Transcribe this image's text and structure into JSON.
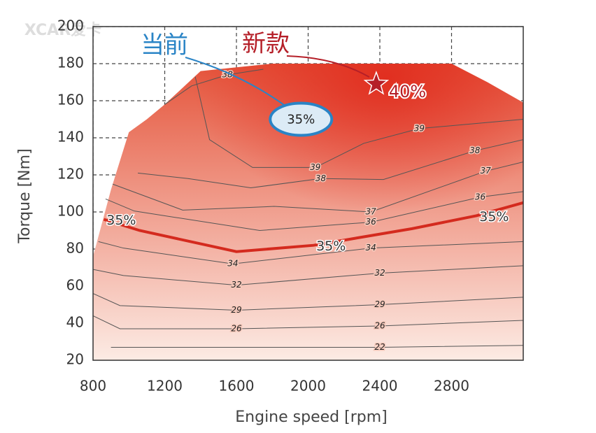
{
  "chart_data": {
    "type": "contour",
    "watermark": "XCAR爱卡",
    "xlabel": "Engine speed [rpm]",
    "ylabel": "Torque [Nm]",
    "xlim": [
      800,
      3200
    ],
    "ylim": [
      20,
      200
    ],
    "xticks": [
      800,
      1200,
      1600,
      2000,
      2400,
      2800
    ],
    "yticks": [
      20,
      40,
      60,
      80,
      100,
      120,
      140,
      160,
      180,
      200
    ],
    "grid": true,
    "colors": {
      "low": "#fcebe4",
      "high": "#e5553c",
      "peak": "#e02a1c"
    },
    "envelope": {
      "x": [
        800,
        900,
        1000,
        1100,
        1200,
        1400,
        1600,
        1800,
        2800,
        3000,
        3200,
        3200,
        800
      ],
      "y": [
        76,
        112,
        143,
        150,
        158,
        176,
        178,
        180,
        180,
        170,
        159,
        20,
        20
      ]
    },
    "contours": [
      {
        "level": 22,
        "x": [
          900,
          1600,
          2400,
          3200
        ],
        "y": [
          27,
          27,
          27,
          28
        ]
      },
      {
        "level": 26,
        "x": [
          800,
          950,
          1600,
          2400,
          3200
        ],
        "y": [
          44,
          37,
          37,
          38.5,
          41.5
        ]
      },
      {
        "level": 29,
        "x": [
          800,
          950,
          1600,
          2400,
          3200
        ],
        "y": [
          56,
          49.5,
          47,
          50,
          54
        ]
      },
      {
        "level": 32,
        "x": [
          800,
          970,
          1600,
          2400,
          3200
        ],
        "y": [
          69,
          65.7,
          60.5,
          67,
          71
        ]
      },
      {
        "level": 34,
        "x": [
          830,
          970,
          1580,
          2350,
          3200
        ],
        "y": [
          84,
          80.5,
          72,
          80.5,
          84
        ]
      },
      {
        "level": 36,
        "x": [
          870,
          1030,
          1730,
          2350,
          2960,
          3200
        ],
        "y": [
          107,
          100.5,
          90,
          94.5,
          108,
          111
        ]
      },
      {
        "level": 37,
        "x": [
          910,
          1300,
          1810,
          2350,
          2990,
          3200
        ],
        "y": [
          115,
          101,
          103,
          100,
          122,
          127
        ]
      },
      {
        "level": 38,
        "x": [
          1050,
          1330,
          1680,
          2070,
          2420,
          2930,
          3200
        ],
        "y": [
          121,
          118,
          113,
          118,
          117.5,
          133,
          139
        ]
      },
      {
        "level": 39,
        "x": [
          1370,
          1450,
          1690,
          2040,
          2310,
          2620,
          3200
        ],
        "y": [
          173,
          139,
          124,
          124,
          137,
          145,
          150
        ]
      },
      {
        "level": 38,
        "x": [
          1200,
          1350,
          1550,
          1750
        ],
        "y": [
          158,
          168,
          174,
          177
        ]
      }
    ],
    "efficiency_line": {
      "level": 35,
      "label": "35%",
      "color": "#d42a1e",
      "x": [
        860,
        1060,
        1600,
        2030,
        2580,
        2940,
        3200
      ],
      "y": [
        96,
        90,
        78.6,
        82,
        91,
        98,
        105
      ]
    },
    "annotations": [
      {
        "text": "当前",
        "color": "#2a84c6",
        "target_label": "35%",
        "shape": "ellipse",
        "x": 1960,
        "y": 150
      },
      {
        "text": "新款",
        "color": "#b51f28",
        "target_label": "40%",
        "shape": "star",
        "x": 2380,
        "y": 169
      }
    ]
  }
}
